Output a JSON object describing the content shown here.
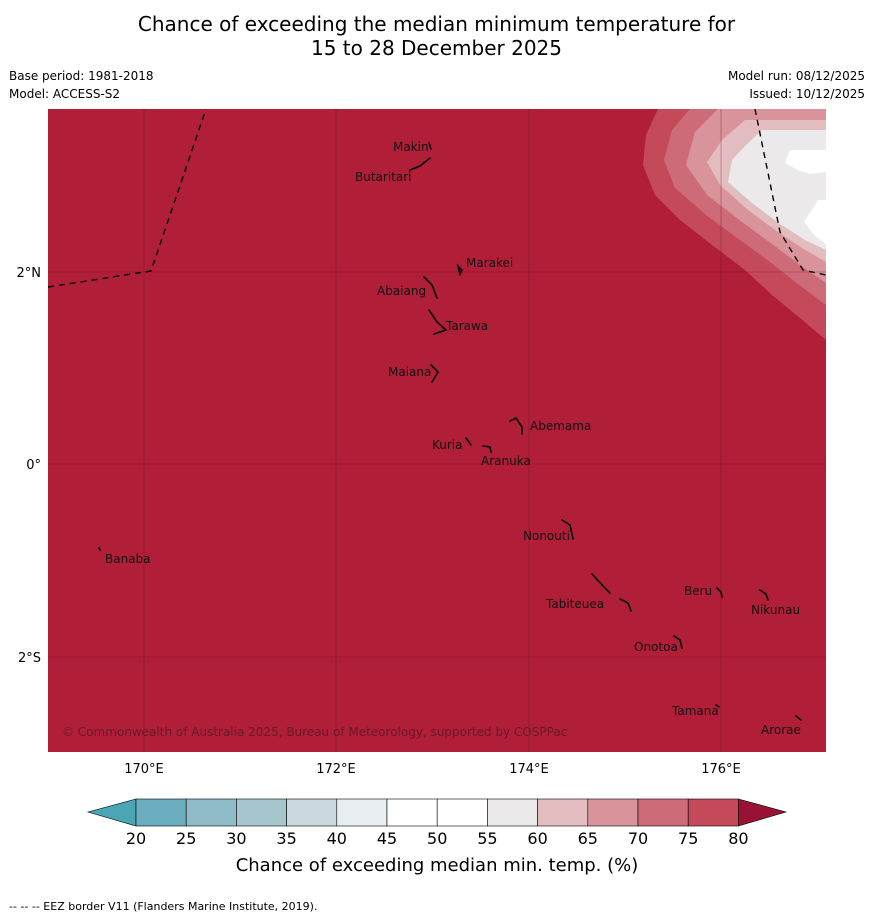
{
  "title_line1": "Chance of exceeding the median minimum temperature for",
  "title_line2": "15 to 28 December 2025",
  "base_period": "Base period: 1981-2018",
  "model": "Model: ACCESS-S2",
  "model_run": "Model run: 08/12/2025",
  "issued": "Issued: 10/12/2025",
  "colors": {
    "background_field": "#b01e38",
    "c75": "#c44a5a",
    "c70": "#cd6b78",
    "c65": "#d8939b",
    "c60": "#e3bcc0",
    "c55": "#ebe9ea",
    "c50": "#ffffff",
    "c45": "#ffffff",
    "c40": "#e8eef1",
    "c35": "#cbd8dd",
    "c30": "#a7c5cd",
    "c25": "#8fbcc8",
    "c20": "#6aadbf",
    "low_end": "#4aa5b5",
    "high_end": "#9a1233"
  },
  "lat_labels": [
    "2°N",
    "0°",
    "2°S"
  ],
  "lon_labels": [
    "170°E",
    "172°E",
    "174°E",
    "176°E"
  ],
  "islands": [
    "Makin",
    "Butaritari",
    "Marakei",
    "Abaiang",
    "Tarawa",
    "Maiana",
    "Abemama",
    "Kuria",
    "Aranuka",
    "Nonouti",
    "Banaba",
    "Tabiteuea",
    "Beru",
    "Nikunau",
    "Onotoa",
    "Tamana",
    "Arorae"
  ],
  "copyright": "© Commonwealth of Australia 2025, Bureau of Meteorology, supported by COSPPac",
  "colorbar": {
    "ticks": [
      "20",
      "25",
      "30",
      "35",
      "40",
      "45",
      "50",
      "55",
      "60",
      "65",
      "70",
      "75",
      "80"
    ],
    "title": "Chance of exceeding median min. temp. (%)"
  },
  "footer": "-- -- -- EEZ border V11 (Flanders Marine Institute, 2019)."
}
